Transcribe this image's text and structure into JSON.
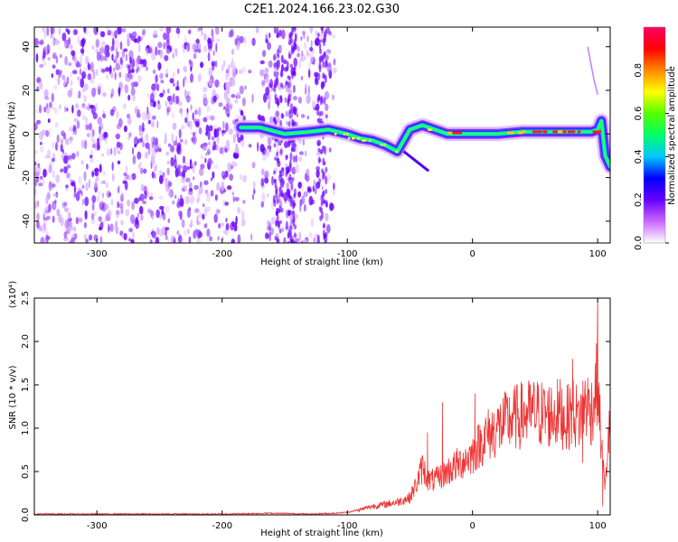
{
  "title": "C2E1.2024.166.23.02.G30",
  "chart_data": [
    {
      "type": "heatmap",
      "xlabel": "Height of straight line (km)",
      "ylabel": "Frequency (Hz)",
      "xlim": [
        -350,
        110
      ],
      "ylim": [
        -50,
        49
      ],
      "xticks": [
        -300,
        -200,
        -100,
        0,
        100
      ],
      "yticks": [
        -40,
        -20,
        0,
        20,
        40
      ],
      "colorbar": {
        "label": "Normalized spectral amplitude",
        "range": [
          0,
          1
        ],
        "ticks": [
          "0.0",
          "0.2",
          "0.4",
          "0.6",
          "0.8"
        ],
        "colors": [
          "#ffffff",
          "#cc66ff",
          "#6600ff",
          "#0000ff",
          "#00c8ff",
          "#00ff66",
          "#55ff00",
          "#ffff00",
          "#ff8800",
          "#ff0000",
          "#ff0066"
        ]
      },
      "noise_region": {
        "x": [
          -350,
          -110
        ],
        "y": [
          -50,
          49
        ]
      },
      "signal_track": {
        "x": [
          -185,
          -170,
          -150,
          -130,
          -115,
          -100,
          -90,
          -80,
          -70,
          -60,
          -50,
          -40,
          -30,
          -20,
          0,
          20,
          40,
          60,
          80,
          95,
          100,
          103,
          106,
          110
        ],
        "y": [
          3,
          3,
          0,
          1,
          2,
          0,
          -2,
          -3,
          -5,
          -8,
          2,
          4,
          2,
          0,
          0,
          0,
          1,
          1,
          1,
          1,
          2,
          6,
          -10,
          -15
        ]
      }
    },
    {
      "type": "line",
      "xlabel": "Height of straight line (km)",
      "ylabel": "SNR (10 * v/v)",
      "yscale_label": "(x10⁴)",
      "xlim": [
        -350,
        110
      ],
      "ylim": [
        0,
        2.5
      ],
      "xticks": [
        -300,
        -200,
        -100,
        0,
        100
      ],
      "yticks": [
        "0.0",
        "0.5",
        "1.0",
        "1.5",
        "2.0",
        "2.5"
      ],
      "series": [
        {
          "color": "#ee3333",
          "x": [
            -350,
            -300,
            -250,
            -200,
            -160,
            -130,
            -110,
            -100,
            -90,
            -80,
            -70,
            -60,
            -50,
            -45,
            -40,
            -35,
            -30,
            -25,
            -20,
            -15,
            -10,
            -5,
            0,
            5,
            10,
            20,
            30,
            40,
            50,
            60,
            70,
            75,
            80,
            85,
            90,
            95,
            98,
            100,
            102,
            104,
            106,
            108,
            110
          ],
          "y": [
            0.01,
            0.01,
            0.01,
            0.01,
            0.02,
            0.01,
            0.02,
            0.03,
            0.06,
            0.1,
            0.12,
            0.15,
            0.2,
            0.35,
            0.55,
            0.4,
            0.4,
            0.45,
            0.5,
            0.55,
            0.6,
            0.65,
            0.7,
            0.8,
            0.9,
            1.0,
            1.1,
            1.15,
            1.18,
            1.15,
            1.18,
            1.1,
            1.2,
            1.1,
            1.3,
            1.2,
            1.4,
            1.6,
            1.0,
            0.6,
            0.3,
            0.8,
            1.1
          ],
          "spikes": [
            [
              -36,
              0.95
            ],
            [
              -24,
              1.3
            ],
            [
              2,
              1.4
            ],
            [
              80,
              1.8
            ],
            [
              100,
              2.5
            ],
            [
              88,
              0.6
            ],
            [
              104,
              0.1
            ]
          ]
        }
      ]
    }
  ]
}
